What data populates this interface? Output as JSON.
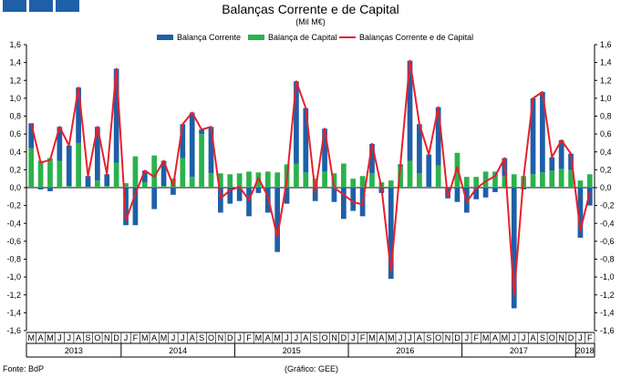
{
  "title": "Balanças Corrente e de Capital",
  "subtitle": "(Mil M€)",
  "legend": {
    "current_account": "Balança Corrente",
    "capital_account": "Balança de Capital",
    "combined": "Balanças Corrente e de Capital"
  },
  "colors": {
    "current_account": "#1f5fa8",
    "capital_account": "#2bb24c",
    "combined": "#e8202a",
    "header_blocks": "#1f5fa8"
  },
  "footer": {
    "source": "Fonte: BdP",
    "credit": "(Gráfico: GEE)"
  },
  "chart_data": {
    "type": "bar",
    "stacked": true,
    "title": "Balanças Corrente e de Capital",
    "subtitle": "(Mil M€)",
    "xlabel": "",
    "ylabel": "",
    "ylim": [
      -1.6,
      1.6
    ],
    "yticks": [
      "-1,6",
      "-1,4",
      "-1,2",
      "-1,0",
      "-0,8",
      "-0,6",
      "-0,4",
      "-0,2",
      "0,0",
      "0,2",
      "0,4",
      "0,6",
      "0,8",
      "1,0",
      "1,2",
      "1,4",
      "1,6"
    ],
    "grid": false,
    "legend_position": "top",
    "categories": [
      "M",
      "A",
      "M",
      "J",
      "J",
      "A",
      "S",
      "O",
      "N",
      "D",
      "J",
      "F",
      "M",
      "A",
      "M",
      "J",
      "J",
      "A",
      "S",
      "O",
      "N",
      "D",
      "J",
      "F",
      "M",
      "A",
      "M",
      "J",
      "J",
      "A",
      "S",
      "O",
      "N",
      "D",
      "J",
      "F",
      "M",
      "A",
      "M",
      "J",
      "J",
      "A",
      "S",
      "O",
      "N",
      "D",
      "J",
      "F",
      "M",
      "A",
      "M",
      "J",
      "J",
      "A",
      "S",
      "O",
      "N",
      "D",
      "J",
      "F"
    ],
    "year_groups": [
      {
        "label": "2013",
        "count": 10
      },
      {
        "label": "2014",
        "count": 12
      },
      {
        "label": "2015",
        "count": 12
      },
      {
        "label": "2016",
        "count": 12
      },
      {
        "label": "2017",
        "count": 12
      },
      {
        "label": "2018",
        "count": 2
      }
    ],
    "series": [
      {
        "name": "Balança Corrente",
        "kind": "bar",
        "values": [
          0.28,
          -0.02,
          -0.04,
          0.38,
          0.45,
          0.62,
          0.12,
          0.6,
          0.13,
          1.05,
          -0.42,
          -0.42,
          0.13,
          -0.24,
          0.28,
          -0.08,
          0.38,
          0.72,
          0.05,
          0.52,
          -0.28,
          -0.18,
          -0.15,
          -0.32,
          -0.06,
          -0.28,
          -0.72,
          -0.18,
          0.92,
          0.72,
          -0.15,
          0.48,
          -0.16,
          -0.35,
          -0.26,
          -0.32,
          0.33,
          -0.06,
          -1.02,
          0.02,
          1.12,
          0.55,
          0.36,
          0.65,
          -0.12,
          -0.16,
          -0.28,
          -0.13,
          -0.11,
          -0.05,
          0.2,
          -1.35,
          -0.02,
          0.85,
          0.9,
          0.15,
          0.32,
          0.18,
          -0.56,
          -0.2
        ]
      },
      {
        "name": "Balança de Capital",
        "kind": "bar",
        "values": [
          0.44,
          0.3,
          0.33,
          0.3,
          0.02,
          0.5,
          0.01,
          0.08,
          0.02,
          0.28,
          0.05,
          0.35,
          0.06,
          0.36,
          0.02,
          0.1,
          0.33,
          0.12,
          0.6,
          0.16,
          0.16,
          0.15,
          0.16,
          0.18,
          0.17,
          0.18,
          0.17,
          0.26,
          0.27,
          0.17,
          0.1,
          0.18,
          0.16,
          0.27,
          0.1,
          0.13,
          0.16,
          0.06,
          0.08,
          0.24,
          0.3,
          0.16,
          0.01,
          0.25,
          0.01,
          0.39,
          0.12,
          0.12,
          0.18,
          0.18,
          0.13,
          0.15,
          0.13,
          0.15,
          0.17,
          0.19,
          0.21,
          0.2,
          0.08,
          0.15
        ]
      },
      {
        "name": "Balanças Corrente e de Capital",
        "kind": "line",
        "values": [
          0.72,
          0.28,
          0.31,
          0.68,
          0.47,
          1.12,
          0.13,
          0.68,
          0.15,
          1.33,
          -0.37,
          -0.07,
          0.19,
          0.12,
          0.3,
          0.02,
          0.71,
          0.84,
          0.65,
          0.68,
          -0.12,
          -0.03,
          0.01,
          -0.14,
          0.11,
          -0.1,
          -0.55,
          0.08,
          1.19,
          0.89,
          -0.05,
          0.66,
          0.0,
          -0.08,
          -0.16,
          -0.19,
          0.49,
          0.0,
          -0.94,
          0.26,
          1.42,
          0.71,
          0.37,
          0.9,
          -0.11,
          0.23,
          -0.16,
          -0.01,
          0.07,
          0.13,
          0.33,
          -1.2,
          0.11,
          1.0,
          1.07,
          0.34,
          0.53,
          0.38,
          -0.48,
          -0.05
        ]
      }
    ]
  }
}
